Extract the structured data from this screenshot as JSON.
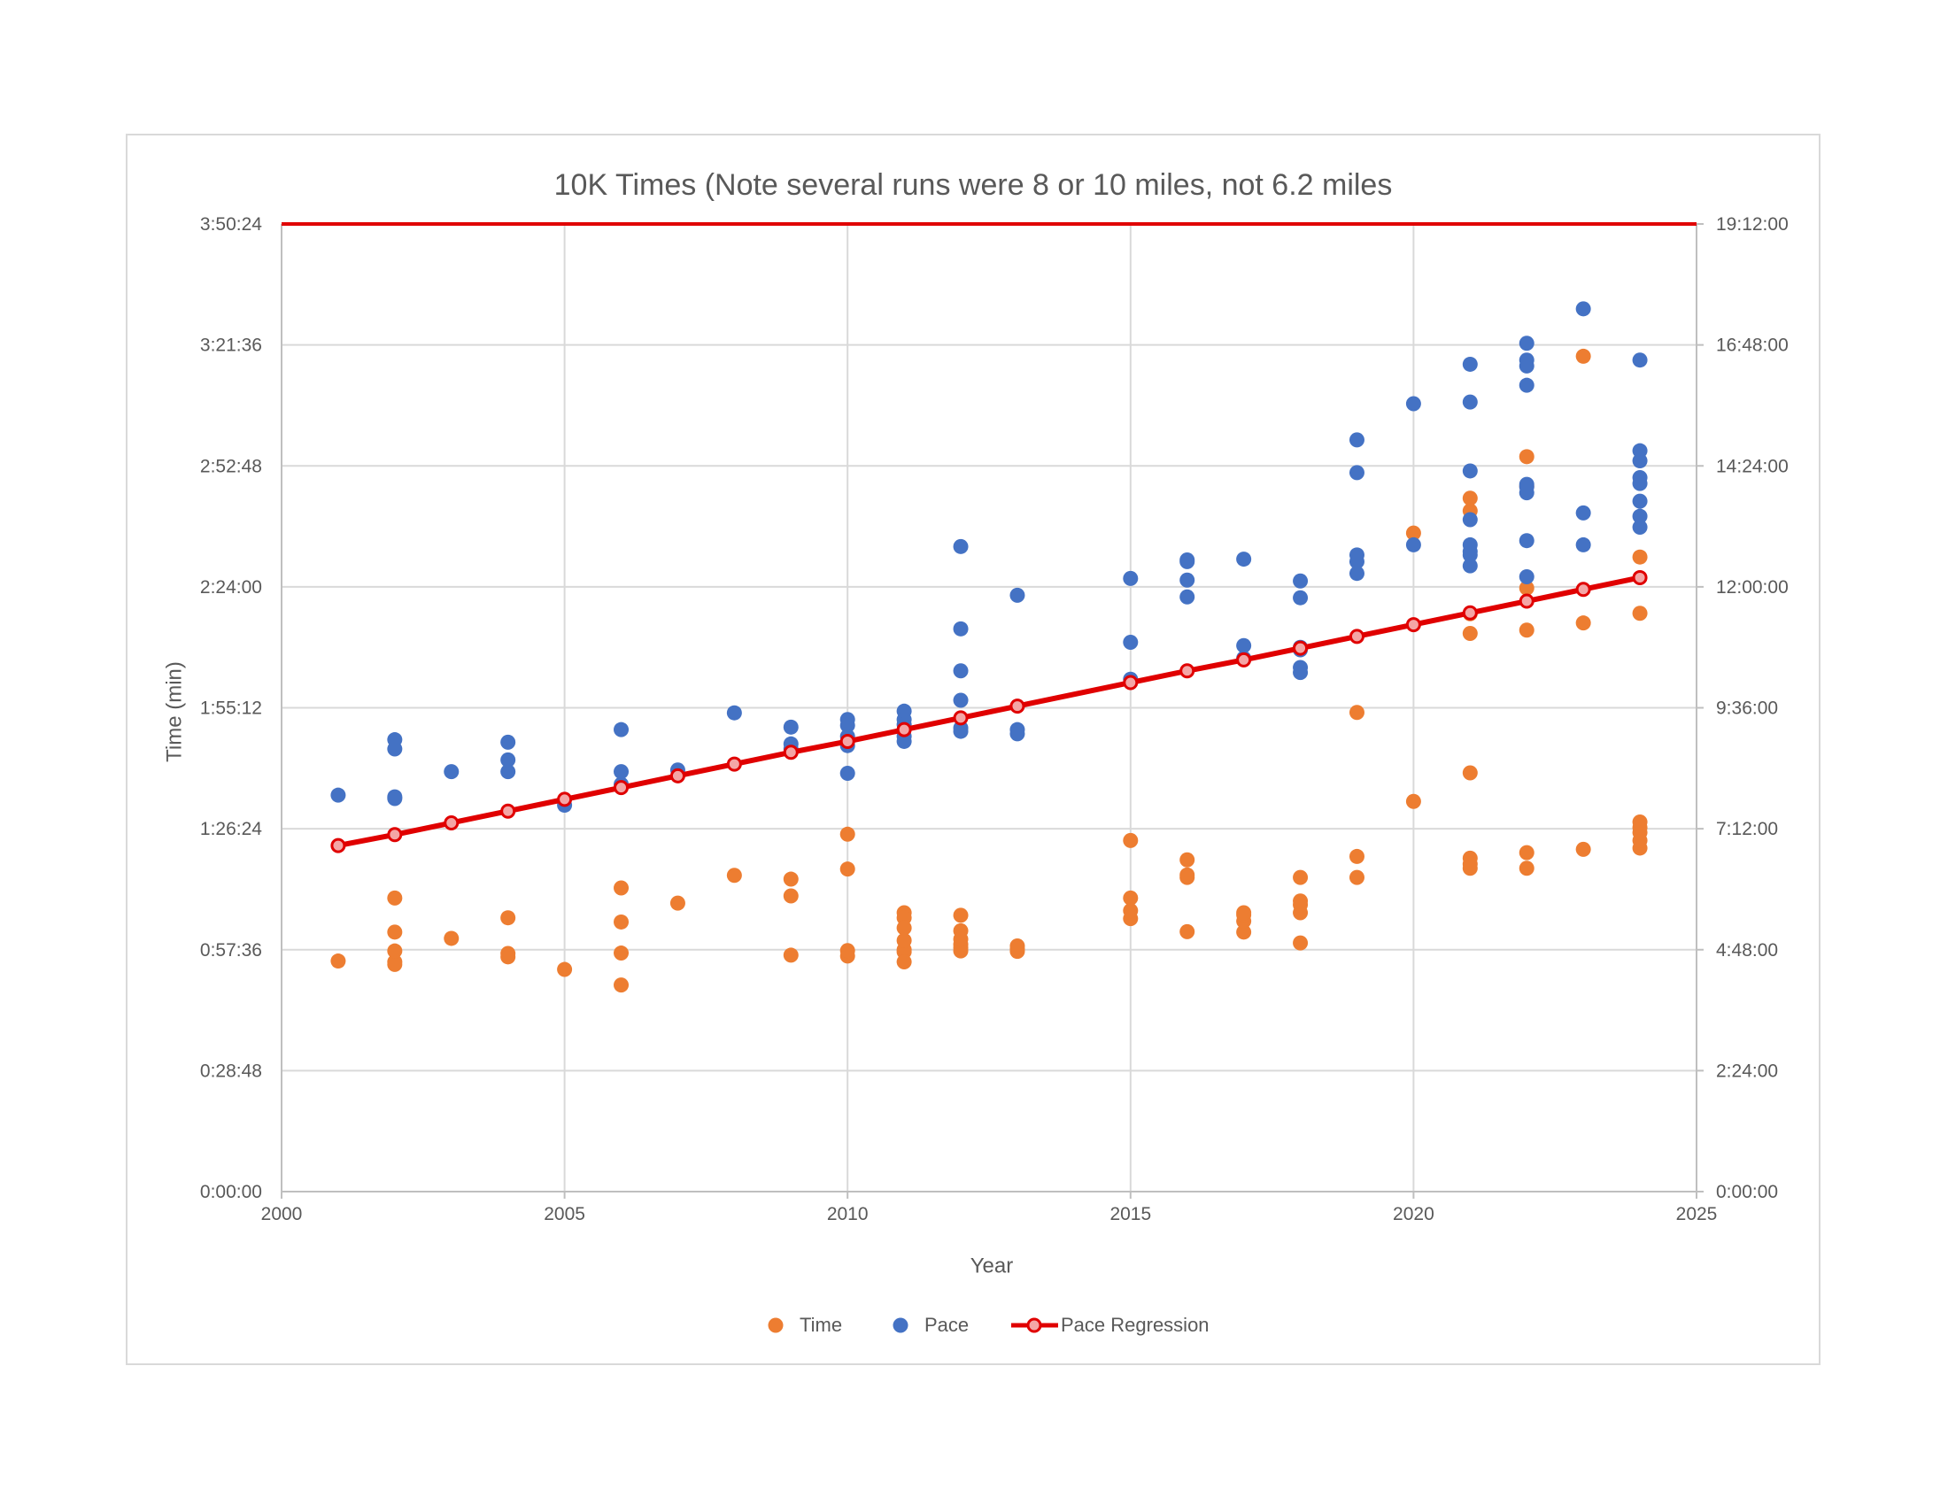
{
  "chart_data": {
    "type": "scatter",
    "title": "10K Times (Note several runs were 8 or 10 miles, not 6.2 miles",
    "xlabel": "Year",
    "ylabel": "Time (min)",
    "xlim": [
      2000,
      2025
    ],
    "x_ticks": [
      "2000",
      "2005",
      "2010",
      "2015",
      "2020",
      "2025"
    ],
    "ylim_seconds": [
      0,
      13824
    ],
    "y_ticks": [
      "0:00:00",
      "0:28:48",
      "0:57:36",
      "1:26:24",
      "1:55:12",
      "2:24:00",
      "2:52:48",
      "3:21:36",
      "3:50:24"
    ],
    "y2lim_seconds": [
      0,
      69120
    ],
    "y2_ticks": [
      "0:00:00",
      "2:24:00",
      "4:48:00",
      "7:12:00",
      "9:36:00",
      "12:00:00",
      "14:24:00",
      "16:48:00",
      "19:12:00"
    ],
    "grid": true,
    "legend_position": "bottom",
    "colors": {
      "time": "#ED7D31",
      "pace": "#4472C4",
      "regression": "#E00000",
      "regression_marker_fill": "#F4A6A6",
      "grid": "#D9D9D9",
      "axis": "#BFBFBF"
    },
    "series": [
      {
        "name": "Time",
        "axis": "primary",
        "points": [
          [
            2001,
            "0:54:54"
          ],
          [
            2002,
            "0:54:42"
          ],
          [
            2002,
            "0:54:06"
          ],
          [
            2002,
            "0:57:18"
          ],
          [
            2002,
            "1:01:48"
          ],
          [
            2002,
            "1:09:54"
          ],
          [
            2003,
            "1:00:18"
          ],
          [
            2004,
            "1:05:12"
          ],
          [
            2004,
            "0:55:54"
          ],
          [
            2004,
            "0:56:42"
          ],
          [
            2005,
            "0:52:54"
          ],
          [
            2006,
            "0:49:12"
          ],
          [
            2006,
            "0:56:48"
          ],
          [
            2006,
            "1:04:12"
          ],
          [
            2006,
            "1:12:18"
          ],
          [
            2007,
            "1:08:42"
          ],
          [
            2008,
            "1:15:18"
          ],
          [
            2009,
            "1:14:24"
          ],
          [
            2009,
            "1:10:24"
          ],
          [
            2009,
            "0:56:18"
          ],
          [
            2010,
            "0:56:06"
          ],
          [
            2010,
            "0:57:24"
          ],
          [
            2010,
            "1:16:48"
          ],
          [
            2010,
            "1:25:06"
          ],
          [
            2011,
            "1:06:24"
          ],
          [
            2011,
            "1:05:12"
          ],
          [
            2011,
            "1:02:48"
          ],
          [
            2011,
            "0:57:36"
          ],
          [
            2011,
            "0:57:06"
          ],
          [
            2011,
            "0:59:48"
          ],
          [
            2011,
            "0:54:42"
          ],
          [
            2012,
            "1:02:06"
          ],
          [
            2012,
            "0:58:54"
          ],
          [
            2012,
            "0:57:18"
          ],
          [
            2012,
            "1:05:48"
          ],
          [
            2012,
            "0:58:06"
          ],
          [
            2012,
            "1:00:06"
          ],
          [
            2013,
            "0:58:30"
          ],
          [
            2013,
            "0:57:12"
          ],
          [
            2013,
            "0:57:48"
          ],
          [
            2015,
            "1:05:00"
          ],
          [
            2015,
            "1:06:54"
          ],
          [
            2015,
            "1:09:54"
          ],
          [
            2015,
            "1:23:36"
          ],
          [
            2016,
            "1:14:48"
          ],
          [
            2016,
            "1:15:24"
          ],
          [
            2016,
            "1:19:00"
          ],
          [
            2016,
            "1:01:54"
          ],
          [
            2017,
            "1:01:48"
          ],
          [
            2017,
            "1:04:24"
          ],
          [
            2017,
            "1:05:54"
          ],
          [
            2017,
            "1:06:24"
          ],
          [
            2018,
            "0:59:12"
          ],
          [
            2018,
            "1:06:24"
          ],
          [
            2018,
            "1:08:18"
          ],
          [
            2018,
            "1:09:12"
          ],
          [
            2018,
            "1:14:48"
          ],
          [
            2019,
            "1:14:48"
          ],
          [
            2019,
            "1:19:48"
          ],
          [
            2019,
            "1:54:06"
          ],
          [
            2020,
            "1:32:54"
          ],
          [
            2020,
            "2:36:48"
          ],
          [
            2021,
            "1:19:24"
          ],
          [
            2021,
            "1:18:00"
          ],
          [
            2021,
            "1:17:00"
          ],
          [
            2021,
            "1:39:42"
          ],
          [
            2021,
            "2:12:54"
          ],
          [
            2021,
            "2:17:36"
          ],
          [
            2021,
            "2:42:06"
          ],
          [
            2021,
            "2:45:06"
          ],
          [
            2022,
            "1:17:00"
          ],
          [
            2022,
            "1:20:42"
          ],
          [
            2022,
            "2:13:42"
          ],
          [
            2022,
            "2:23:42"
          ],
          [
            2022,
            "2:47:54"
          ],
          [
            2022,
            "2:55:00"
          ],
          [
            2023,
            "1:21:30"
          ],
          [
            2023,
            "2:15:24"
          ],
          [
            2023,
            "3:18:54"
          ],
          [
            2024,
            "1:21:48"
          ],
          [
            2024,
            "1:23:36"
          ],
          [
            2024,
            "1:25:30"
          ],
          [
            2024,
            "1:26:42"
          ],
          [
            2024,
            "1:28:00"
          ],
          [
            2024,
            "2:17:42"
          ],
          [
            2024,
            "2:31:06"
          ]
        ]
      },
      {
        "name": "Pace",
        "axis": "secondary",
        "points": [
          [
            2001,
            "7:52:00"
          ],
          [
            2002,
            "7:48:00"
          ],
          [
            2002,
            "7:50:00"
          ],
          [
            2002,
            "8:47:00"
          ],
          [
            2002,
            "8:58:00"
          ],
          [
            2003,
            "8:20:00"
          ],
          [
            2004,
            "8:20:00"
          ],
          [
            2004,
            "8:34:00"
          ],
          [
            2004,
            "8:55:00"
          ],
          [
            2005,
            "7:40:00"
          ],
          [
            2006,
            "8:05:00"
          ],
          [
            2006,
            "8:20:00"
          ],
          [
            2006,
            "9:10:00"
          ],
          [
            2007,
            "8:22:00"
          ],
          [
            2008,
            "9:30:00"
          ],
          [
            2009,
            "9:13:00"
          ],
          [
            2009,
            "8:47:00"
          ],
          [
            2009,
            "8:53:00"
          ],
          [
            2010,
            "8:18:00"
          ],
          [
            2010,
            "8:51:00"
          ],
          [
            2010,
            "9:22:00"
          ],
          [
            2010,
            "9:15:00"
          ],
          [
            2010,
            "9:02:00"
          ],
          [
            2011,
            "9:32:00"
          ],
          [
            2011,
            "9:22:00"
          ],
          [
            2011,
            "9:16:00"
          ],
          [
            2011,
            "9:02:00"
          ],
          [
            2011,
            "8:56:00"
          ],
          [
            2012,
            "9:12:00"
          ],
          [
            2012,
            "9:08:00"
          ],
          [
            2012,
            "9:45:00"
          ],
          [
            2012,
            "10:20:00"
          ],
          [
            2012,
            "11:10:00"
          ],
          [
            2012,
            "12:48:00"
          ],
          [
            2013,
            "9:10:00"
          ],
          [
            2013,
            "9:05:00"
          ],
          [
            2013,
            "11:50:00"
          ],
          [
            2015,
            "10:10:00"
          ],
          [
            2015,
            "10:54:00"
          ],
          [
            2015,
            "12:10:00"
          ],
          [
            2016,
            "11:48:00"
          ],
          [
            2016,
            "12:08:00"
          ],
          [
            2016,
            "12:30:00"
          ],
          [
            2016,
            "12:32:00"
          ],
          [
            2017,
            "10:35:00"
          ],
          [
            2017,
            "10:50:00"
          ],
          [
            2017,
            "12:33:00"
          ],
          [
            2018,
            "10:18:00"
          ],
          [
            2018,
            "10:24:00"
          ],
          [
            2018,
            "10:45:00"
          ],
          [
            2018,
            "10:48:00"
          ],
          [
            2018,
            "11:47:00"
          ],
          [
            2018,
            "12:07:00"
          ],
          [
            2019,
            "12:16:00"
          ],
          [
            2019,
            "12:30:00"
          ],
          [
            2019,
            "12:38:00"
          ],
          [
            2019,
            "14:16:00"
          ],
          [
            2019,
            "14:55:00"
          ],
          [
            2020,
            "12:50:00"
          ],
          [
            2020,
            "15:38:00"
          ],
          [
            2021,
            "12:25:00"
          ],
          [
            2021,
            "12:38:00"
          ],
          [
            2021,
            "12:42:00"
          ],
          [
            2021,
            "12:50:00"
          ],
          [
            2021,
            "13:20:00"
          ],
          [
            2021,
            "14:18:00"
          ],
          [
            2021,
            "15:40:00"
          ],
          [
            2021,
            "16:25:00"
          ],
          [
            2022,
            "12:12:00"
          ],
          [
            2022,
            "12:55:00"
          ],
          [
            2022,
            "13:52:00"
          ],
          [
            2022,
            "13:59:00"
          ],
          [
            2022,
            "14:02:00"
          ],
          [
            2022,
            "16:00:00"
          ],
          [
            2022,
            "16:23:00"
          ],
          [
            2022,
            "16:30:00"
          ],
          [
            2022,
            "16:50:00"
          ],
          [
            2023,
            "12:50:00"
          ],
          [
            2023,
            "13:28:00"
          ],
          [
            2023,
            "17:31:00"
          ],
          [
            2024,
            "13:11:00"
          ],
          [
            2024,
            "13:24:00"
          ],
          [
            2024,
            "13:42:00"
          ],
          [
            2024,
            "14:03:00"
          ],
          [
            2024,
            "14:10:00"
          ],
          [
            2024,
            "14:30:00"
          ],
          [
            2024,
            "14:42:00"
          ],
          [
            2024,
            "16:30:00"
          ]
        ]
      },
      {
        "name": "Pace Regression",
        "axis": "secondary",
        "line": true,
        "points": [
          [
            2001,
            "6:52:00"
          ],
          [
            2002,
            "7:05:00"
          ],
          [
            2003,
            "7:19:00"
          ],
          [
            2004,
            "7:33:00"
          ],
          [
            2005,
            "7:47:00"
          ],
          [
            2006,
            "8:01:00"
          ],
          [
            2007,
            "8:15:00"
          ],
          [
            2008,
            "8:29:00"
          ],
          [
            2009,
            "8:43:00"
          ],
          [
            2010,
            "8:56:00"
          ],
          [
            2011,
            "9:10:00"
          ],
          [
            2012,
            "9:24:00"
          ],
          [
            2013,
            "9:38:00"
          ],
          [
            2015,
            "10:06:00"
          ],
          [
            2016,
            "10:20:00"
          ],
          [
            2017,
            "10:33:00"
          ],
          [
            2018,
            "10:47:00"
          ],
          [
            2019,
            "11:01:00"
          ],
          [
            2020,
            "11:15:00"
          ],
          [
            2021,
            "11:29:00"
          ],
          [
            2022,
            "11:43:00"
          ],
          [
            2023,
            "11:57:00"
          ],
          [
            2024,
            "12:11:00"
          ]
        ]
      }
    ]
  }
}
